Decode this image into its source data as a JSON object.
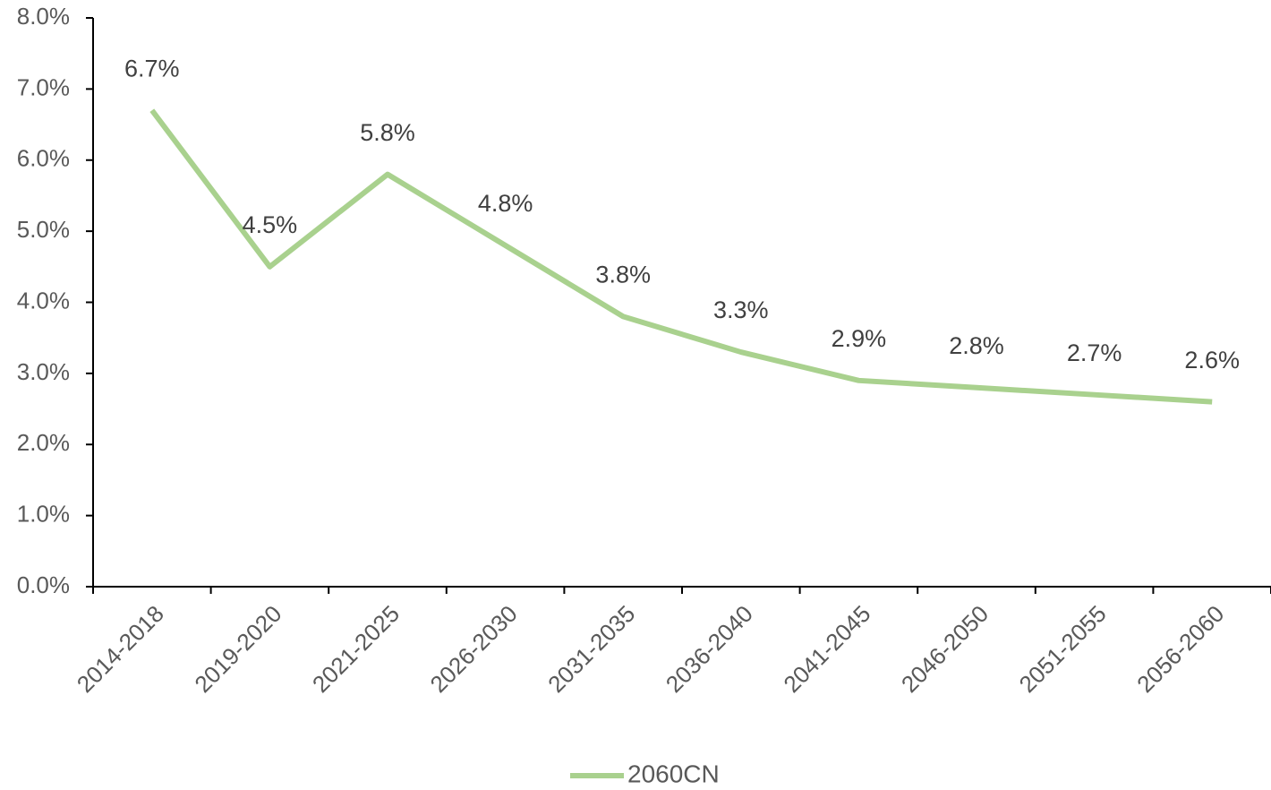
{
  "chart_data": {
    "type": "line",
    "categories": [
      "2014-2018",
      "2019-2020",
      "2021-2025",
      "2026-2030",
      "2031-2035",
      "2036-2040",
      "2041-2045",
      "2046-2050",
      "2051-2055",
      "2056-2060"
    ],
    "series": [
      {
        "name": "2060CN",
        "color": "#a9d18e",
        "values": [
          6.7,
          4.5,
          5.8,
          4.8,
          3.8,
          3.3,
          2.9,
          2.8,
          2.7,
          2.6
        ],
        "value_labels": [
          "6.7%",
          "4.5%",
          "5.8%",
          "4.8%",
          "3.8%",
          "3.3%",
          "2.9%",
          "2.8%",
          "2.7%",
          "2.6%"
        ]
      }
    ],
    "ylim": [
      0,
      8
    ],
    "yticks": [
      {
        "value": 0,
        "label": "0.0%"
      },
      {
        "value": 1,
        "label": "1.0%"
      },
      {
        "value": 2,
        "label": "2.0%"
      },
      {
        "value": 3,
        "label": "3.0%"
      },
      {
        "value": 4,
        "label": "4.0%"
      },
      {
        "value": 5,
        "label": "5.0%"
      },
      {
        "value": 6,
        "label": "6.0%"
      },
      {
        "value": 7,
        "label": "7.0%"
      },
      {
        "value": 8,
        "label": "8.0%"
      }
    ],
    "grid": false,
    "legend": "bottom"
  }
}
